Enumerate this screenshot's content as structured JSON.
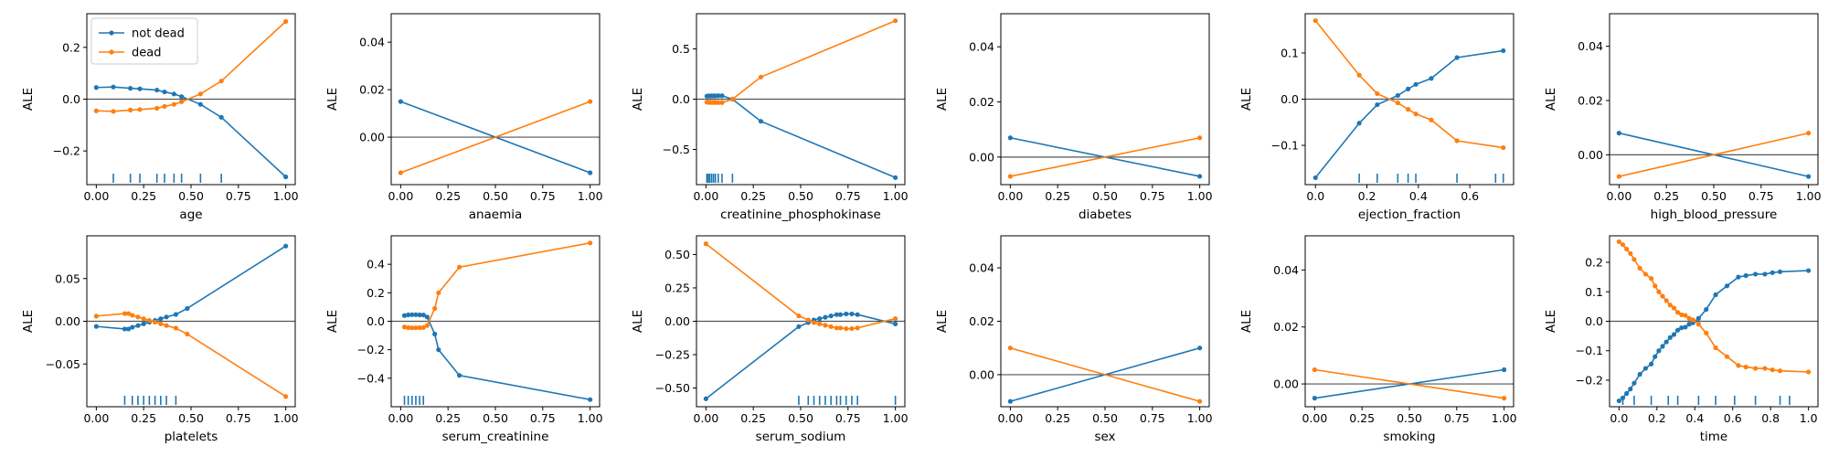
{
  "figure": {
    "y_label": "ALE",
    "legend": {
      "placement": "upper-left (first panel)",
      "entries": [
        "not dead",
        "dead"
      ]
    },
    "colors": {
      "not_dead": "#1f77b4",
      "dead": "#ff7f0e",
      "zero_line": "#555555",
      "axes": "#000000"
    }
  },
  "chart_data": [
    {
      "type": "line",
      "xlabel": "age",
      "ylabel": "ALE",
      "xlim": [
        -0.05,
        1.05
      ],
      "ylim": [
        -0.33,
        0.33
      ],
      "xticks": [
        0,
        0.25,
        0.5,
        0.75,
        1
      ],
      "xtick_labels": [
        "0.00",
        "0.25",
        "0.50",
        "0.75",
        "1.00"
      ],
      "yticks": [
        -0.2,
        0,
        0.2
      ],
      "ytick_labels": [
        "−0.2",
        "0.0",
        "0.2"
      ],
      "rug": [
        0.09,
        0.18,
        0.23,
        0.32,
        0.36,
        0.41,
        0.45,
        0.55,
        0.66
      ],
      "series": [
        {
          "name": "not dead",
          "x": [
            0,
            0.09,
            0.18,
            0.23,
            0.32,
            0.36,
            0.41,
            0.45,
            0.55,
            0.66,
            1
          ],
          "y": [
            0.045,
            0.047,
            0.042,
            0.04,
            0.035,
            0.028,
            0.02,
            0.01,
            -0.02,
            -0.07,
            -0.3
          ]
        },
        {
          "name": "dead",
          "x": [
            0,
            0.09,
            0.18,
            0.23,
            0.32,
            0.36,
            0.41,
            0.45,
            0.55,
            0.66,
            1
          ],
          "y": [
            -0.045,
            -0.047,
            -0.042,
            -0.04,
            -0.035,
            -0.028,
            -0.02,
            -0.01,
            0.02,
            0.07,
            0.3
          ]
        }
      ]
    },
    {
      "type": "line",
      "xlabel": "anaemia",
      "ylabel": "ALE",
      "xlim": [
        -0.05,
        1.05
      ],
      "ylim": [
        -0.02,
        0.052
      ],
      "xticks": [
        0,
        0.25,
        0.5,
        0.75,
        1
      ],
      "xtick_labels": [
        "0.00",
        "0.25",
        "0.50",
        "0.75",
        "1.00"
      ],
      "yticks": [
        0,
        0.02,
        0.04
      ],
      "ytick_labels": [
        "0.00",
        "0.02",
        "0.04"
      ],
      "rug": [],
      "series": [
        {
          "name": "not dead",
          "x": [
            0,
            1
          ],
          "y": [
            0.015,
            -0.015
          ]
        },
        {
          "name": "dead",
          "x": [
            0,
            1
          ],
          "y": [
            -0.015,
            0.015
          ]
        }
      ]
    },
    {
      "type": "line",
      "xlabel": "creatinine_phosphokinase",
      "ylabel": "ALE",
      "xlim": [
        -0.05,
        1.05
      ],
      "ylim": [
        -0.85,
        0.85
      ],
      "xticks": [
        0,
        0.25,
        0.5,
        0.75,
        1
      ],
      "xtick_labels": [
        "0.00",
        "0.25",
        "0.50",
        "0.75",
        "1.00"
      ],
      "yticks": [
        -0.5,
        0,
        0.5
      ],
      "ytick_labels": [
        "−0.5",
        "0.0",
        "0.5"
      ],
      "rug": [
        0.005,
        0.012,
        0.02,
        0.03,
        0.04,
        0.05,
        0.065,
        0.085,
        0.14
      ],
      "series": [
        {
          "name": "not dead",
          "x": [
            0.005,
            0.012,
            0.02,
            0.03,
            0.04,
            0.05,
            0.065,
            0.085,
            0.14,
            0.29,
            1
          ],
          "y": [
            0.03,
            0.032,
            0.032,
            0.033,
            0.033,
            0.033,
            0.034,
            0.034,
            0.0,
            -0.22,
            -0.78
          ]
        },
        {
          "name": "dead",
          "x": [
            0.005,
            0.012,
            0.02,
            0.03,
            0.04,
            0.05,
            0.065,
            0.085,
            0.14,
            0.29,
            1
          ],
          "y": [
            -0.03,
            -0.032,
            -0.032,
            -0.033,
            -0.033,
            -0.033,
            -0.034,
            -0.034,
            0.0,
            0.22,
            0.78
          ]
        }
      ]
    },
    {
      "type": "line",
      "xlabel": "diabetes",
      "ylabel": "ALE",
      "xlim": [
        -0.05,
        1.05
      ],
      "ylim": [
        -0.01,
        0.052
      ],
      "xticks": [
        0,
        0.25,
        0.5,
        0.75,
        1
      ],
      "xtick_labels": [
        "0.00",
        "0.25",
        "0.50",
        "0.75",
        "1.00"
      ],
      "yticks": [
        0,
        0.02,
        0.04
      ],
      "ytick_labels": [
        "0.00",
        "0.02",
        "0.04"
      ],
      "rug": [],
      "series": [
        {
          "name": "not dead",
          "x": [
            0,
            1
          ],
          "y": [
            0.007,
            -0.007
          ]
        },
        {
          "name": "dead",
          "x": [
            0,
            1
          ],
          "y": [
            -0.007,
            0.007
          ]
        }
      ]
    },
    {
      "type": "line",
      "xlabel": "ejection_fraction",
      "ylabel": "ALE",
      "xlim": [
        -0.04,
        0.77
      ],
      "ylim": [
        -0.185,
        0.185
      ],
      "xticks": [
        0,
        0.2,
        0.4,
        0.6
      ],
      "xtick_labels": [
        "0.0",
        "0.2",
        "0.4",
        "0.6"
      ],
      "yticks": [
        -0.1,
        0,
        0.1
      ],
      "ytick_labels": [
        "−0.1",
        "0.0",
        "0.1"
      ],
      "rug": [
        0.17,
        0.24,
        0.32,
        0.36,
        0.39,
        0.55,
        0.7,
        0.73
      ],
      "series": [
        {
          "name": "not dead",
          "x": [
            0,
            0.17,
            0.24,
            0.32,
            0.36,
            0.39,
            0.45,
            0.55,
            0.73
          ],
          "y": [
            -0.17,
            -0.052,
            -0.012,
            0.008,
            0.022,
            0.032,
            0.045,
            0.09,
            0.105
          ]
        },
        {
          "name": "dead",
          "x": [
            0,
            0.17,
            0.24,
            0.32,
            0.36,
            0.39,
            0.45,
            0.55,
            0.73
          ],
          "y": [
            0.17,
            0.052,
            0.012,
            -0.008,
            -0.022,
            -0.032,
            -0.045,
            -0.09,
            -0.105
          ]
        }
      ]
    },
    {
      "type": "line",
      "xlabel": "high_blood_pressure",
      "ylabel": "ALE",
      "xlim": [
        -0.05,
        1.05
      ],
      "ylim": [
        -0.011,
        0.052
      ],
      "xticks": [
        0,
        0.25,
        0.5,
        0.75,
        1
      ],
      "xtick_labels": [
        "0.00",
        "0.25",
        "0.50",
        "0.75",
        "1.00"
      ],
      "yticks": [
        0,
        0.02,
        0.04
      ],
      "ytick_labels": [
        "0.00",
        "0.02",
        "0.04"
      ],
      "rug": [],
      "series": [
        {
          "name": "not dead",
          "x": [
            0,
            1
          ],
          "y": [
            0.008,
            -0.008
          ]
        },
        {
          "name": "dead",
          "x": [
            0,
            1
          ],
          "y": [
            -0.008,
            0.008
          ]
        }
      ]
    },
    {
      "type": "line",
      "xlabel": "platelets",
      "ylabel": "ALE",
      "xlim": [
        -0.05,
        1.05
      ],
      "ylim": [
        -0.1,
        0.1
      ],
      "xticks": [
        0,
        0.25,
        0.5,
        0.75,
        1
      ],
      "xtick_labels": [
        "0.00",
        "0.25",
        "0.50",
        "0.75",
        "1.00"
      ],
      "yticks": [
        -0.05,
        0,
        0.05
      ],
      "ytick_labels": [
        "−0.05",
        "0.00",
        "0.05"
      ],
      "rug": [
        0.15,
        0.19,
        0.22,
        0.25,
        0.28,
        0.31,
        0.34,
        0.37,
        0.42
      ],
      "series": [
        {
          "name": "not dead",
          "x": [
            0,
            0.15,
            0.17,
            0.19,
            0.22,
            0.25,
            0.28,
            0.31,
            0.34,
            0.37,
            0.42,
            0.48,
            1
          ],
          "y": [
            -0.006,
            -0.009,
            -0.009,
            -0.007,
            -0.005,
            -0.003,
            -0.001,
            0.001,
            0.003,
            0.005,
            0.008,
            0.015,
            0.088
          ]
        },
        {
          "name": "dead",
          "x": [
            0,
            0.15,
            0.17,
            0.19,
            0.22,
            0.25,
            0.28,
            0.31,
            0.34,
            0.37,
            0.42,
            0.48,
            1
          ],
          "y": [
            0.006,
            0.009,
            0.009,
            0.007,
            0.005,
            0.003,
            0.001,
            -0.001,
            -0.003,
            -0.005,
            -0.008,
            -0.015,
            -0.088
          ]
        }
      ]
    },
    {
      "type": "line",
      "xlabel": "serum_creatinine",
      "ylabel": "ALE",
      "xlim": [
        -0.05,
        1.05
      ],
      "ylim": [
        -0.6,
        0.6
      ],
      "xticks": [
        0,
        0.25,
        0.5,
        0.75,
        1
      ],
      "xtick_labels": [
        "0.00",
        "0.25",
        "0.50",
        "0.75",
        "1.00"
      ],
      "yticks": [
        -0.4,
        -0.2,
        0,
        0.2,
        0.4
      ],
      "ytick_labels": [
        "−0.4",
        "−0.2",
        "0.0",
        "0.2",
        "0.4"
      ],
      "rug": [
        0.02,
        0.04,
        0.06,
        0.08,
        0.1,
        0.12
      ],
      "series": [
        {
          "name": "not dead",
          "x": [
            0.02,
            0.04,
            0.06,
            0.08,
            0.1,
            0.12,
            0.14,
            0.18,
            0.2,
            0.31,
            1
          ],
          "y": [
            0.04,
            0.045,
            0.046,
            0.046,
            0.045,
            0.044,
            0.03,
            -0.09,
            -0.2,
            -0.38,
            -0.55
          ]
        },
        {
          "name": "dead",
          "x": [
            0.02,
            0.04,
            0.06,
            0.08,
            0.1,
            0.12,
            0.14,
            0.18,
            0.2,
            0.31,
            1
          ],
          "y": [
            -0.04,
            -0.045,
            -0.046,
            -0.046,
            -0.045,
            -0.044,
            -0.03,
            0.09,
            0.2,
            0.38,
            0.55
          ]
        }
      ]
    },
    {
      "type": "line",
      "xlabel": "serum_sodium",
      "ylabel": "ALE",
      "xlim": [
        -0.05,
        1.05
      ],
      "ylim": [
        -0.64,
        0.64
      ],
      "xticks": [
        0,
        0.25,
        0.5,
        0.75,
        1
      ],
      "xtick_labels": [
        "0.00",
        "0.25",
        "0.50",
        "0.75",
        "1.00"
      ],
      "yticks": [
        -0.5,
        -0.25,
        0,
        0.25,
        0.5
      ],
      "ytick_labels": [
        "−0.50",
        "−0.25",
        "0.00",
        "0.25",
        "0.50"
      ],
      "rug": [
        0.49,
        0.54,
        0.57,
        0.6,
        0.63,
        0.66,
        0.69,
        0.71,
        0.74,
        0.77,
        0.8,
        1
      ],
      "series": [
        {
          "name": "not dead",
          "x": [
            0,
            0.49,
            0.54,
            0.57,
            0.6,
            0.63,
            0.66,
            0.69,
            0.71,
            0.74,
            0.77,
            0.8,
            1
          ],
          "y": [
            -0.58,
            -0.04,
            -0.01,
            0.01,
            0.02,
            0.03,
            0.04,
            0.05,
            0.05,
            0.055,
            0.055,
            0.05,
            -0.02
          ]
        },
        {
          "name": "dead",
          "x": [
            0,
            0.49,
            0.54,
            0.57,
            0.6,
            0.63,
            0.66,
            0.69,
            0.71,
            0.74,
            0.77,
            0.8,
            1
          ],
          "y": [
            0.58,
            0.04,
            0.01,
            -0.01,
            -0.02,
            -0.03,
            -0.04,
            -0.05,
            -0.05,
            -0.055,
            -0.055,
            -0.05,
            0.02
          ]
        }
      ]
    },
    {
      "type": "line",
      "xlabel": "sex",
      "ylabel": "ALE",
      "xlim": [
        -0.05,
        1.05
      ],
      "ylim": [
        -0.012,
        0.052
      ],
      "xticks": [
        0,
        0.25,
        0.5,
        0.75,
        1
      ],
      "xtick_labels": [
        "0.00",
        "0.25",
        "0.50",
        "0.75",
        "1.00"
      ],
      "yticks": [
        0,
        0.02,
        0.04
      ],
      "ytick_labels": [
        "0.00",
        "0.02",
        "0.04"
      ],
      "rug": [],
      "series": [
        {
          "name": "not dead",
          "x": [
            0,
            1
          ],
          "y": [
            -0.01,
            0.01
          ]
        },
        {
          "name": "dead",
          "x": [
            0,
            1
          ],
          "y": [
            0.01,
            -0.01
          ]
        }
      ]
    },
    {
      "type": "line",
      "xlabel": "smoking",
      "ylabel": "ALE",
      "xlim": [
        -0.05,
        1.05
      ],
      "ylim": [
        -0.008,
        0.052
      ],
      "xticks": [
        0,
        0.25,
        0.5,
        0.75,
        1
      ],
      "xtick_labels": [
        "0.00",
        "0.25",
        "0.50",
        "0.75",
        "1.00"
      ],
      "yticks": [
        0,
        0.02,
        0.04
      ],
      "ytick_labels": [
        "0.00",
        "0.02",
        "0.04"
      ],
      "rug": [],
      "series": [
        {
          "name": "not dead",
          "x": [
            0,
            1
          ],
          "y": [
            -0.005,
            0.005
          ]
        },
        {
          "name": "dead",
          "x": [
            0,
            1
          ],
          "y": [
            0.005,
            -0.005
          ]
        }
      ]
    },
    {
      "type": "line",
      "xlabel": "time",
      "ylabel": "ALE",
      "xlim": [
        -0.05,
        1.05
      ],
      "ylim": [
        -0.29,
        0.29
      ],
      "xticks": [
        0,
        0.2,
        0.4,
        0.6,
        0.8,
        1
      ],
      "xtick_labels": [
        "0.0",
        "0.2",
        "0.4",
        "0.6",
        "0.8",
        "1.0"
      ],
      "yticks": [
        -0.2,
        -0.1,
        0,
        0.1,
        0.2
      ],
      "ytick_labels": [
        "−0.2",
        "−0.1",
        "0.0",
        "0.1",
        "0.2"
      ],
      "rug": [
        0.02,
        0.08,
        0.17,
        0.26,
        0.31,
        0.42,
        0.51,
        0.61,
        0.72,
        0.85,
        0.9
      ],
      "series": [
        {
          "name": "not dead",
          "x": [
            0,
            0.02,
            0.04,
            0.06,
            0.08,
            0.11,
            0.14,
            0.17,
            0.19,
            0.21,
            0.23,
            0.25,
            0.27,
            0.29,
            0.31,
            0.33,
            0.35,
            0.37,
            0.39,
            0.42,
            0.46,
            0.51,
            0.57,
            0.63,
            0.67,
            0.72,
            0.77,
            0.81,
            0.85,
            1
          ],
          "y": [
            -0.27,
            -0.26,
            -0.245,
            -0.23,
            -0.21,
            -0.18,
            -0.16,
            -0.145,
            -0.12,
            -0.1,
            -0.085,
            -0.07,
            -0.055,
            -0.045,
            -0.03,
            -0.022,
            -0.02,
            -0.01,
            -0.005,
            0.01,
            0.04,
            0.09,
            0.12,
            0.15,
            0.155,
            0.16,
            0.16,
            0.165,
            0.168,
            0.172
          ]
        },
        {
          "name": "dead",
          "x": [
            0,
            0.02,
            0.04,
            0.06,
            0.08,
            0.11,
            0.14,
            0.17,
            0.19,
            0.21,
            0.23,
            0.25,
            0.27,
            0.29,
            0.31,
            0.33,
            0.35,
            0.37,
            0.39,
            0.42,
            0.46,
            0.51,
            0.57,
            0.63,
            0.67,
            0.72,
            0.77,
            0.81,
            0.85,
            1
          ],
          "y": [
            0.27,
            0.26,
            0.245,
            0.23,
            0.21,
            0.18,
            0.16,
            0.145,
            0.12,
            0.1,
            0.085,
            0.07,
            0.055,
            0.045,
            0.03,
            0.022,
            0.02,
            0.01,
            0.005,
            -0.01,
            -0.04,
            -0.09,
            -0.12,
            -0.15,
            -0.155,
            -0.16,
            -0.16,
            -0.165,
            -0.168,
            -0.172
          ]
        }
      ]
    }
  ]
}
